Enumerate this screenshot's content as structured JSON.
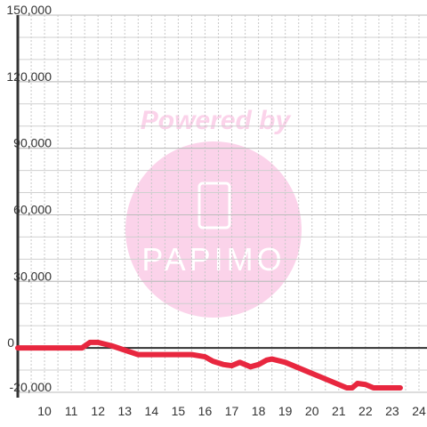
{
  "chart_data": {
    "type": "line",
    "watermark": [
      "Powered by",
      "PAPIMO"
    ],
    "x": [
      9,
      11.4,
      11.7,
      12,
      12.5,
      13,
      13.5,
      14,
      15,
      15.5,
      16,
      16.3,
      16.7,
      17,
      17.3,
      17.7,
      18,
      18.3,
      18.5,
      19,
      19.3,
      19.7,
      20,
      20.3,
      20.7,
      21,
      21.3,
      21.5,
      21.7,
      22,
      22.3,
      22.7,
      23,
      23.3
    ],
    "series": [
      {
        "color": "#e8273f",
        "values": [
          0,
          0,
          2500,
          2500,
          1000,
          -1000,
          -3000,
          -3000,
          -3000,
          -3000,
          -4000,
          -6000,
          -7500,
          -8000,
          -6500,
          -8500,
          -7500,
          -5500,
          -5000,
          -6500,
          -8000,
          -10000,
          -11500,
          -13000,
          -15000,
          -16500,
          -18000,
          -18000,
          -16000,
          -16500,
          -18000,
          -18000,
          -18000,
          -18000
        ]
      }
    ],
    "xlim": [
      9,
      24.3
    ],
    "xticks": [
      10,
      11,
      12,
      13,
      14,
      15,
      16,
      17,
      18,
      19,
      20,
      21,
      22,
      23,
      24
    ],
    "ylim": [
      -20000,
      150000
    ],
    "yticks": [
      {
        "value": -20000,
        "label": "-20,000"
      },
      0,
      {
        "value": 30000,
        "label": "30,000"
      },
      {
        "value": 60000,
        "label": "60,000"
      },
      {
        "value": 90000,
        "label": "90,000"
      },
      {
        "value": 120000,
        "label": "120,000"
      },
      {
        "value": 150000,
        "label": "150,000"
      }
    ],
    "grid": true
  }
}
